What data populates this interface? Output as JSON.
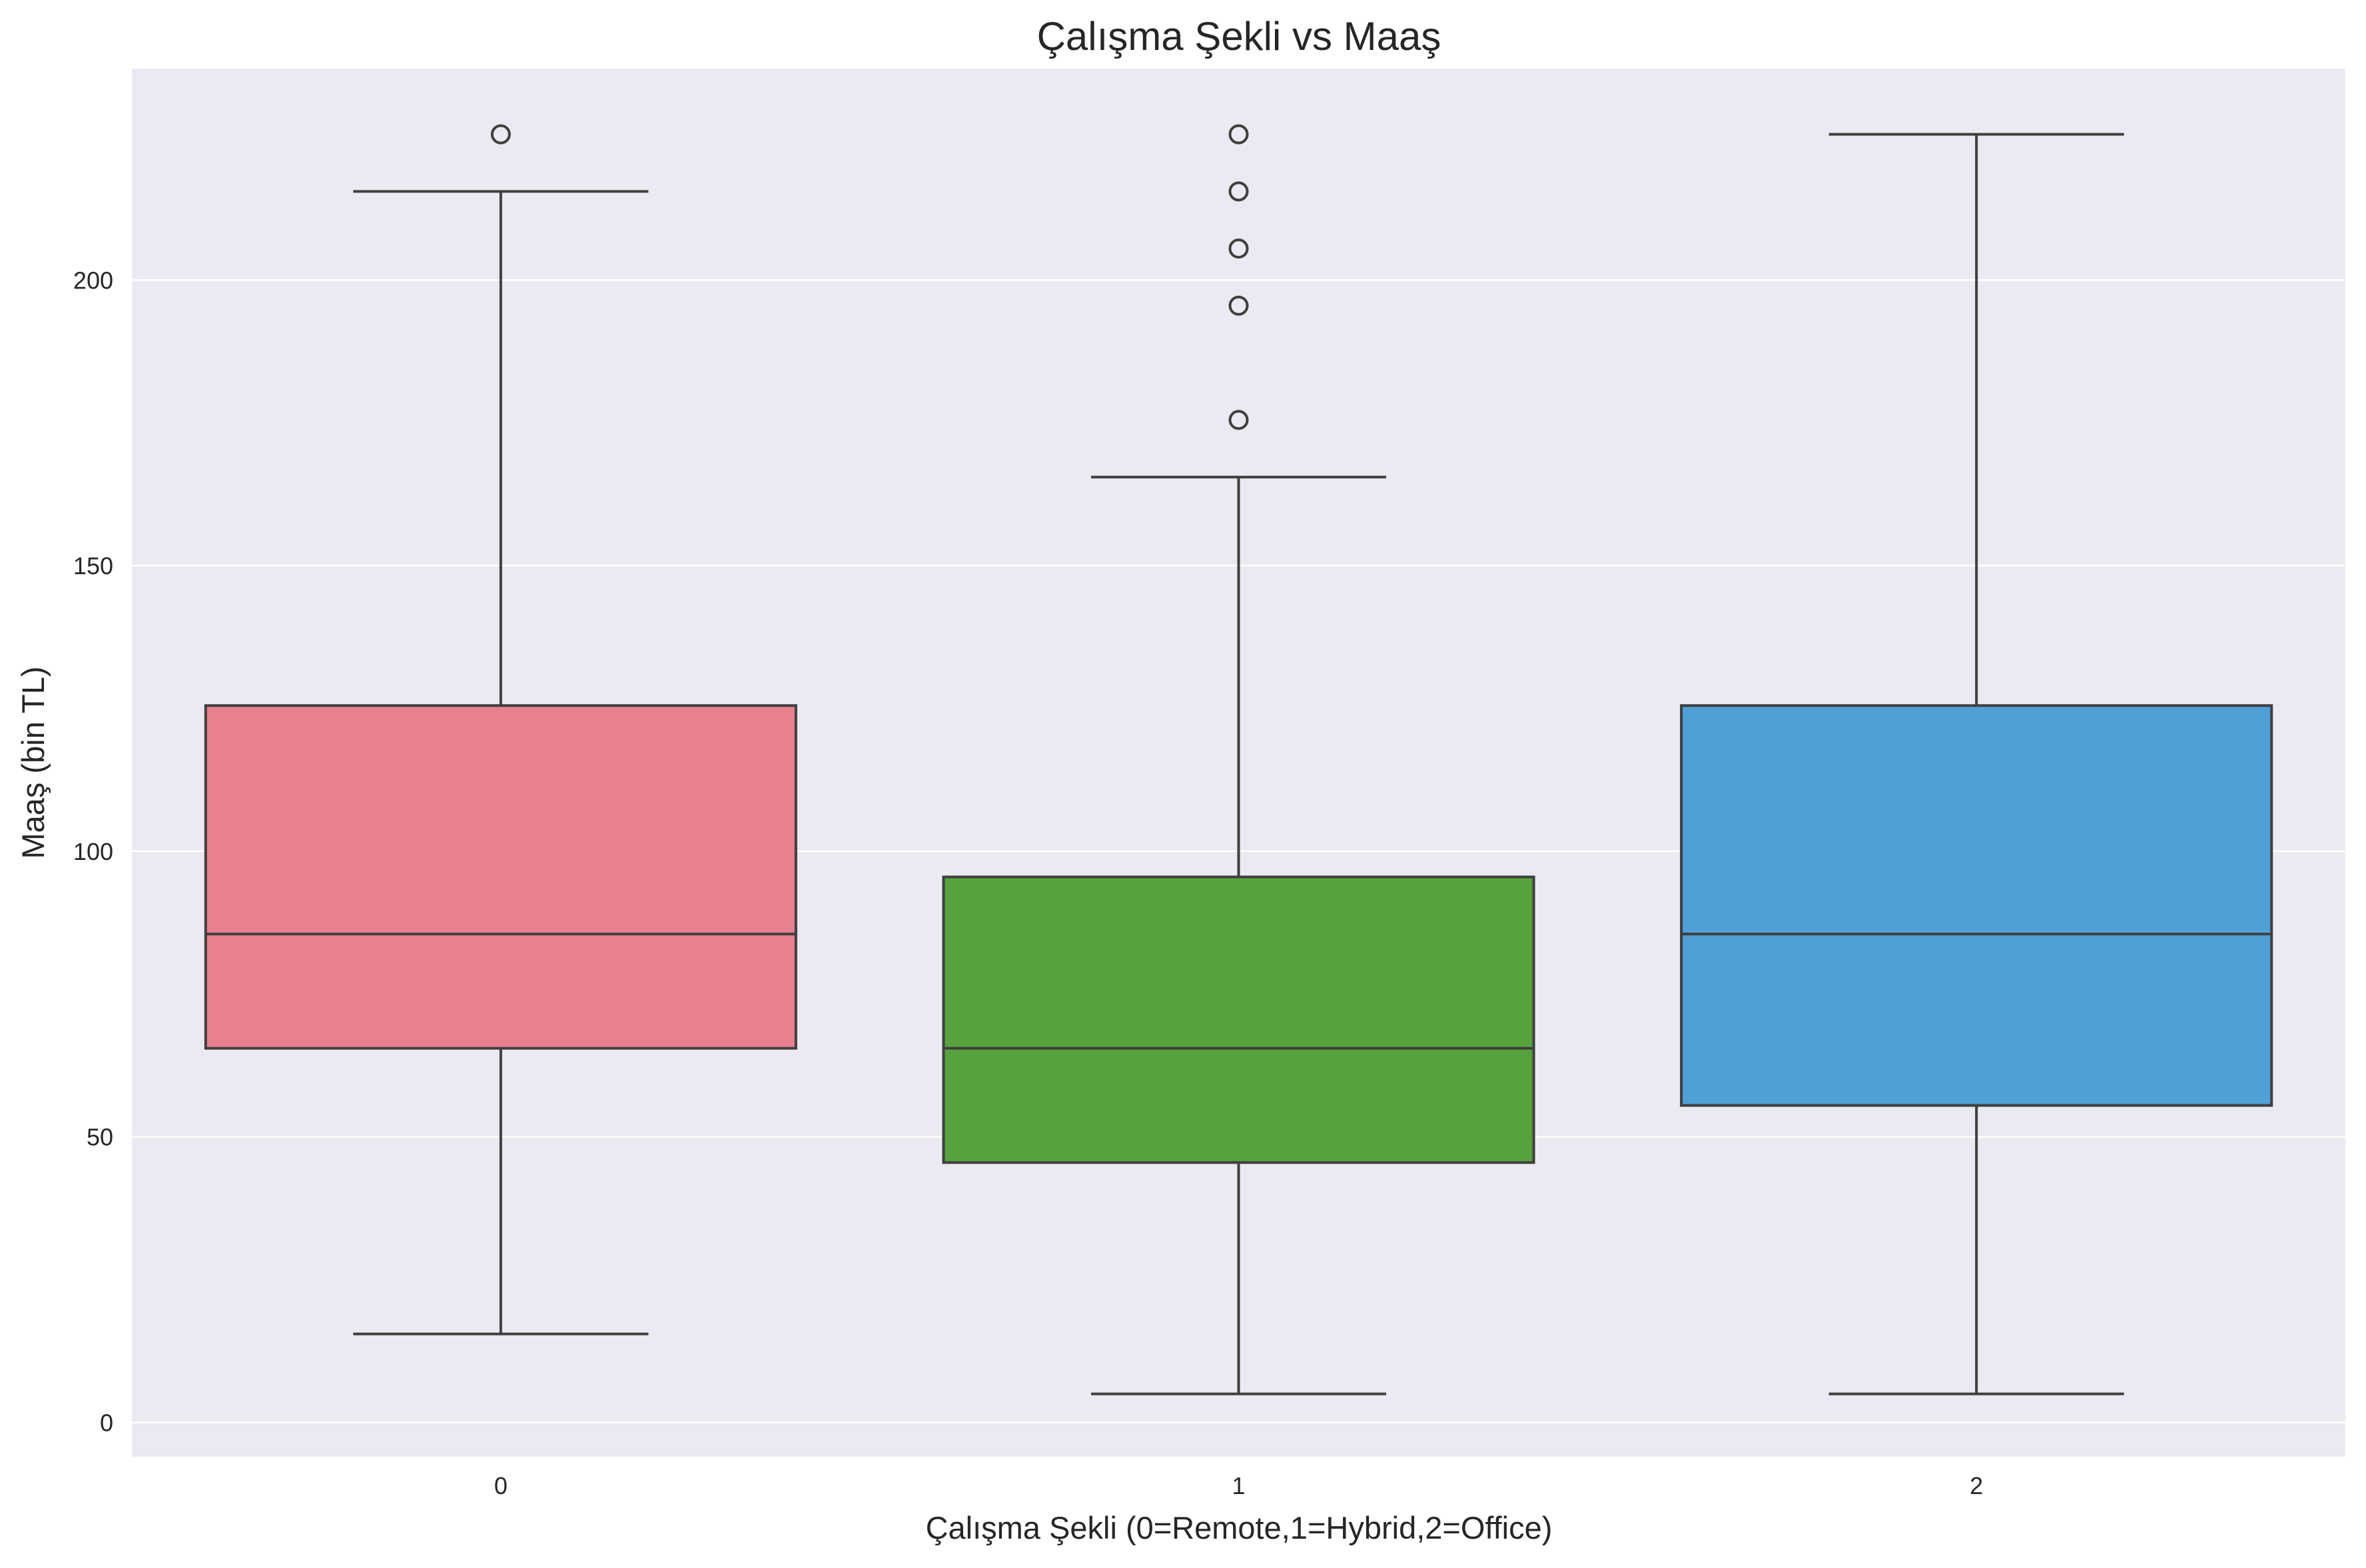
{
  "chart_data": {
    "type": "boxplot",
    "title": "Çalışma Şekli vs Maaş",
    "xlabel": "Çalışma Şekli (0=Remote,1=Hybrid,2=Office)",
    "ylabel": "Maaş (bin TL)",
    "ylim": [
      -6,
      237
    ],
    "y_ticks": [
      0,
      50,
      100,
      150,
      200
    ],
    "grid": true,
    "categories": [
      "0",
      "1",
      "2"
    ],
    "boxes": [
      {
        "category": "0",
        "whisker_low": 15.5,
        "q1": 65.5,
        "median": 85.5,
        "q3": 125.5,
        "whisker_high": 215.5,
        "outliers": [
          225.5
        ],
        "color": "#e8808f"
      },
      {
        "category": "1",
        "whisker_low": 5,
        "q1": 45.5,
        "median": 65.5,
        "q3": 95.5,
        "whisker_high": 165.5,
        "outliers": [
          175.5,
          195.5,
          205.5,
          215.5,
          225.5
        ],
        "color": "#56a23d"
      },
      {
        "category": "2",
        "whisker_low": 5,
        "q1": 55.5,
        "median": 85.5,
        "q3": 125.5,
        "whisker_high": 225.5,
        "outliers": [],
        "color": "#509fd6"
      }
    ],
    "colors": {
      "plot_background": "#eaeaf2",
      "grid": "#ffffff",
      "line": "#3f3f3f"
    }
  }
}
